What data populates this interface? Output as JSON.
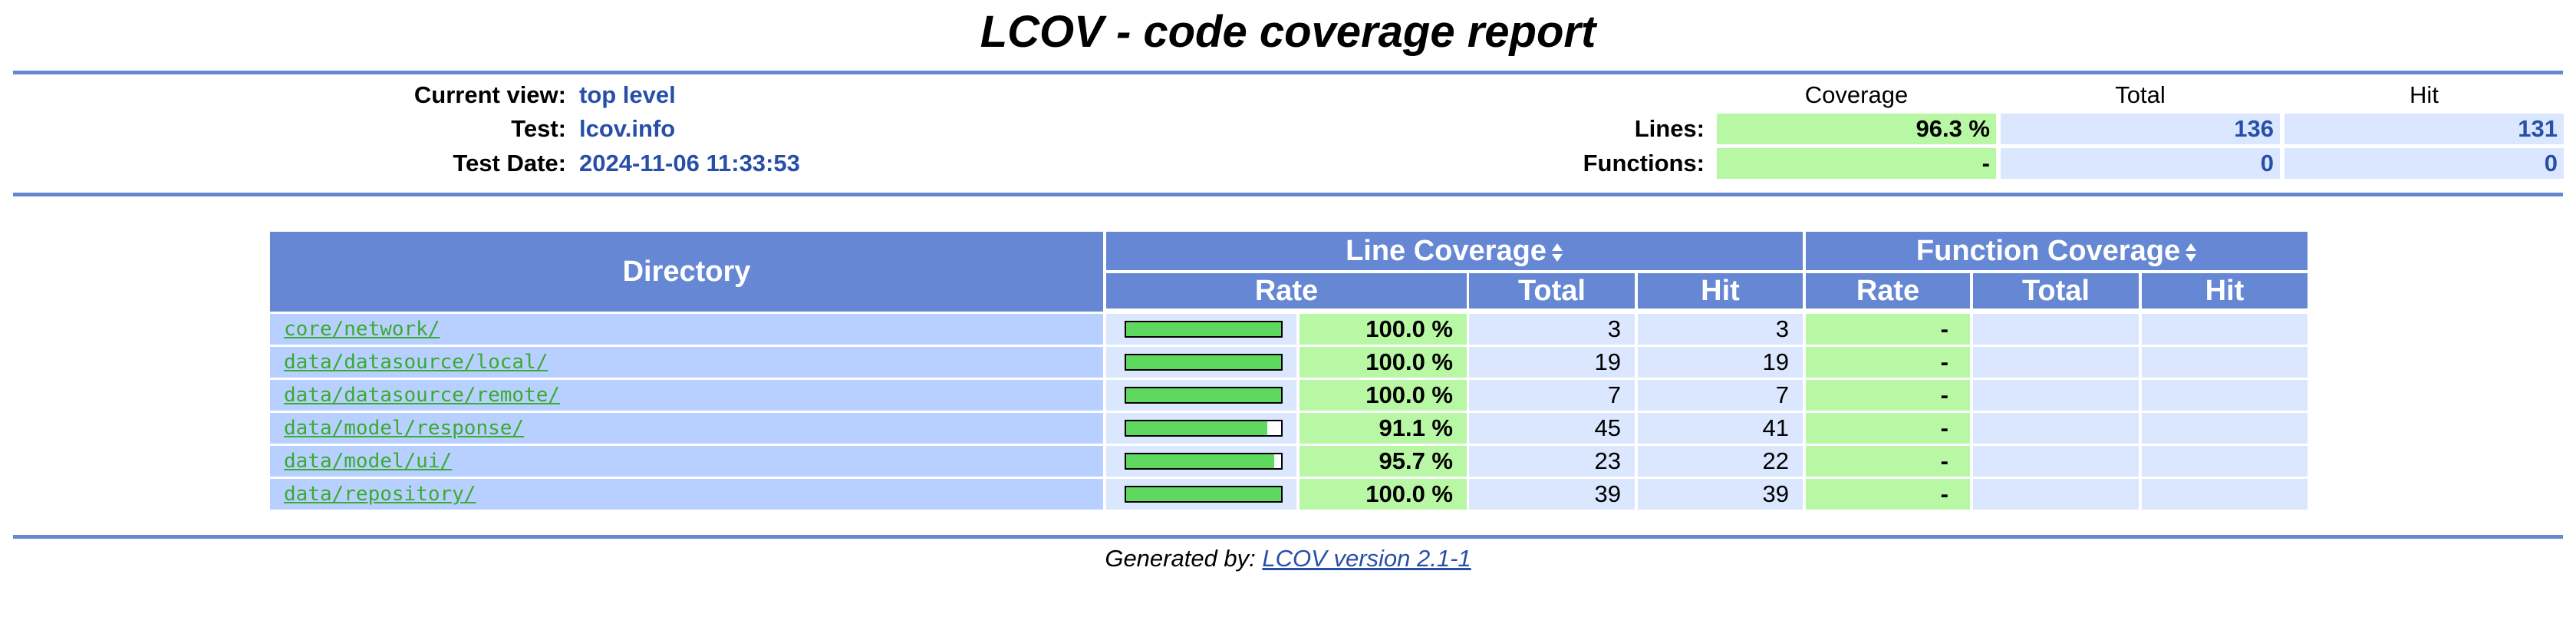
{
  "header": {
    "title": "LCOV - code coverage report",
    "current_view_label": "Current view:",
    "current_view_value": "top level",
    "test_label": "Test:",
    "test_value": "lcov.info",
    "test_date_label": "Test Date:",
    "test_date_value": "2024-11-06 11:33:53"
  },
  "summary": {
    "col_coverage": "Coverage",
    "col_total": "Total",
    "col_hit": "Hit",
    "lines_label": "Lines:",
    "lines_coverage": "96.3 %",
    "lines_total": "136",
    "lines_hit": "131",
    "functions_label": "Functions:",
    "functions_coverage": "-",
    "functions_total": "0",
    "functions_hit": "0"
  },
  "table": {
    "col_directory": "Directory",
    "col_line_coverage": "Line Coverage",
    "col_function_coverage": "Function Coverage",
    "sub_rate": "Rate",
    "sub_total": "Total",
    "sub_hit": "Hit",
    "rows": [
      {
        "dir": "core/network/",
        "percent": 100.0,
        "rate": "100.0 %",
        "total": "3",
        "hit": "3",
        "fn_rate": "-",
        "fn_total": "",
        "fn_hit": ""
      },
      {
        "dir": "data/datasource/local/",
        "percent": 100.0,
        "rate": "100.0 %",
        "total": "19",
        "hit": "19",
        "fn_rate": "-",
        "fn_total": "",
        "fn_hit": ""
      },
      {
        "dir": "data/datasource/remote/",
        "percent": 100.0,
        "rate": "100.0 %",
        "total": "7",
        "hit": "7",
        "fn_rate": "-",
        "fn_total": "",
        "fn_hit": ""
      },
      {
        "dir": "data/model/response/",
        "percent": 91.1,
        "rate": "91.1 %",
        "total": "45",
        "hit": "41",
        "fn_rate": "-",
        "fn_total": "",
        "fn_hit": ""
      },
      {
        "dir": "data/model/ui/",
        "percent": 95.7,
        "rate": "95.7 %",
        "total": "23",
        "hit": "22",
        "fn_rate": "-",
        "fn_total": "",
        "fn_hit": ""
      },
      {
        "dir": "data/repository/",
        "percent": 100.0,
        "rate": "100.0 %",
        "total": "39",
        "hit": "39",
        "fn_rate": "-",
        "fn_total": "",
        "fn_hit": ""
      }
    ]
  },
  "footer": {
    "generated_by": "Generated by:",
    "lcov_link": "LCOV version 2.1-1"
  },
  "colors": {
    "ruler": "#6688d4",
    "header_bg": "#6688d4",
    "coverage_high": "#b8f7a3",
    "value_bg": "#dae7fe",
    "dir_bg": "#b8d0ff",
    "bar_fill": "#5fd85f",
    "link_green": "#3aab2f",
    "value_blue": "#284fa8"
  }
}
